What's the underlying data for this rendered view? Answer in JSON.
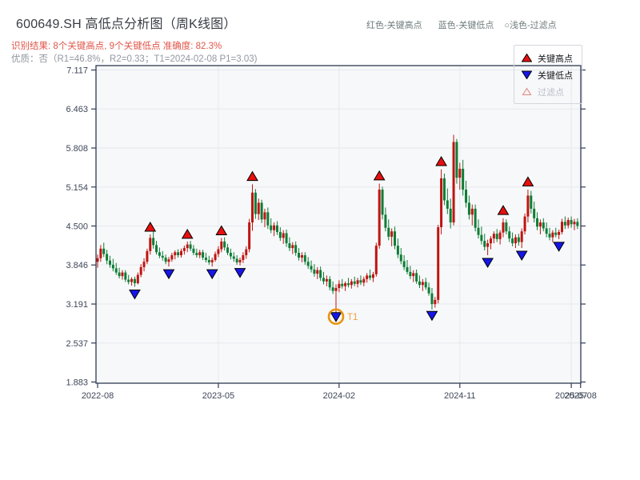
{
  "header": {
    "title": "600649.SH 高低点分析图（周K线图）",
    "subtitle_result": "识别结果: 8个关键高点, 9个关键低点  准确度: 82.3%",
    "subtitle_quality": "优质：否（R1=46.8%，R2=0.33；T1=2024-02-08 P1=3.03)",
    "top_legend": [
      {
        "label": "红色-关键高点"
      },
      {
        "label": "蓝色-关键低点"
      },
      {
        "label": "○浅色-过滤点"
      }
    ]
  },
  "legend_box": {
    "high_label": "关键高点",
    "low_label": "关键低点",
    "filtered_label": "过滤点"
  },
  "colors": {
    "up_candle": "#c01410",
    "down_candle": "#0e7d36",
    "key_high_marker": "#e80f0f",
    "key_low_marker": "#1616e8",
    "marker_edge": "#000000",
    "t1_ring": "#e8940a",
    "t1_text": "#f0a23c",
    "subtitle_red": "#e0564a",
    "axis_text": "#3d4657",
    "spine": "#2e3b52",
    "grid": "#e7e9ec",
    "plot_bg": "#f7f8fa"
  },
  "chart_data": {
    "type": "candlestick",
    "symbol": "600649.SH",
    "frequency": "weekly",
    "title": "600649.SH 高低点分析图（周K线图）",
    "ylim": [
      1.8,
      7.21
    ],
    "grid": true,
    "y_ticks": [
      1.883,
      2.537,
      3.191,
      3.846,
      4.5,
      5.154,
      5.808,
      6.463,
      7.117
    ],
    "x_ticks": [
      {
        "label": "2022-08",
        "week": 0
      },
      {
        "label": "2023-05",
        "week": 39
      },
      {
        "label": "2024-02",
        "week": 78
      },
      {
        "label": "2024-11",
        "week": 117
      },
      {
        "label": "2025-07",
        "week": 153
      },
      {
        "label": "2025-08",
        "week": 156
      }
    ],
    "candles": [
      [
        3.9,
        4.02,
        3.8,
        3.96
      ],
      [
        3.96,
        4.18,
        3.9,
        4.12
      ],
      [
        4.12,
        4.22,
        3.98,
        4.03
      ],
      [
        4.03,
        4.1,
        3.86,
        3.92
      ],
      [
        3.92,
        4.0,
        3.8,
        3.85
      ],
      [
        3.85,
        3.95,
        3.74,
        3.79
      ],
      [
        3.79,
        3.88,
        3.68,
        3.72
      ],
      [
        3.72,
        3.8,
        3.62,
        3.66
      ],
      [
        3.66,
        3.76,
        3.6,
        3.72
      ],
      [
        3.72,
        3.76,
        3.56,
        3.6
      ],
      [
        3.6,
        3.68,
        3.52,
        3.56
      ],
      [
        3.56,
        3.64,
        3.5,
        3.61
      ],
      [
        3.61,
        3.65,
        3.48,
        3.54
      ],
      [
        3.54,
        3.72,
        3.52,
        3.68
      ],
      [
        3.68,
        3.86,
        3.64,
        3.81
      ],
      [
        3.81,
        3.96,
        3.74,
        3.9
      ],
      [
        3.9,
        4.12,
        3.86,
        4.08
      ],
      [
        4.08,
        4.36,
        4.02,
        4.3
      ],
      [
        4.3,
        4.43,
        4.12,
        4.18
      ],
      [
        4.18,
        4.25,
        4.02,
        4.06
      ],
      [
        4.06,
        4.14,
        3.96,
        4.0
      ],
      [
        4.0,
        4.08,
        3.92,
        3.97
      ],
      [
        3.97,
        4.02,
        3.86,
        3.9
      ],
      [
        3.9,
        3.98,
        3.82,
        3.94
      ],
      [
        3.94,
        4.05,
        3.9,
        4.01
      ],
      [
        4.01,
        4.09,
        3.94,
        4.06
      ],
      [
        4.06,
        4.11,
        3.97,
        4.01
      ],
      [
        4.01,
        4.12,
        3.97,
        4.08
      ],
      [
        4.08,
        4.17,
        4.02,
        4.13
      ],
      [
        4.13,
        4.24,
        4.06,
        4.19
      ],
      [
        4.19,
        4.25,
        4.08,
        4.12
      ],
      [
        4.12,
        4.18,
        4.01,
        4.05
      ],
      [
        4.05,
        4.12,
        3.97,
        4.01
      ],
      [
        4.01,
        4.1,
        3.96,
        4.06
      ],
      [
        4.06,
        4.1,
        3.93,
        3.97
      ],
      [
        3.97,
        4.05,
        3.89,
        3.93
      ],
      [
        3.93,
        4.0,
        3.85,
        3.89
      ],
      [
        3.89,
        3.97,
        3.82,
        3.93
      ],
      [
        3.93,
        4.07,
        3.9,
        4.03
      ],
      [
        4.03,
        4.16,
        3.98,
        4.11
      ],
      [
        4.11,
        4.3,
        4.06,
        4.24
      ],
      [
        4.24,
        4.31,
        4.09,
        4.14
      ],
      [
        4.14,
        4.2,
        4.01,
        4.05
      ],
      [
        4.05,
        4.12,
        3.94,
        3.99
      ],
      [
        3.99,
        4.06,
        3.9,
        3.95
      ],
      [
        3.95,
        4.01,
        3.85,
        3.89
      ],
      [
        3.89,
        3.97,
        3.84,
        3.93
      ],
      [
        3.93,
        4.06,
        3.88,
        4.01
      ],
      [
        4.01,
        4.16,
        3.95,
        4.11
      ],
      [
        4.11,
        4.62,
        4.06,
        4.56
      ],
      [
        4.56,
        5.2,
        4.42,
        5.06
      ],
      [
        5.06,
        5.12,
        4.62,
        4.7
      ],
      [
        4.7,
        4.96,
        4.6,
        4.89
      ],
      [
        4.89,
        4.94,
        4.55,
        4.61
      ],
      [
        4.61,
        4.79,
        4.48,
        4.73
      ],
      [
        4.73,
        4.81,
        4.45,
        4.51
      ],
      [
        4.51,
        4.63,
        4.38,
        4.43
      ],
      [
        4.43,
        4.56,
        4.33,
        4.51
      ],
      [
        4.51,
        4.58,
        4.35,
        4.4
      ],
      [
        4.4,
        4.48,
        4.25,
        4.3
      ],
      [
        4.3,
        4.43,
        4.2,
        4.38
      ],
      [
        4.38,
        4.44,
        4.15,
        4.21
      ],
      [
        4.21,
        4.31,
        4.08,
        4.13
      ],
      [
        4.13,
        4.23,
        4.03,
        4.18
      ],
      [
        4.18,
        4.24,
        4.0,
        4.05
      ],
      [
        4.05,
        4.13,
        3.92,
        3.97
      ],
      [
        3.97,
        4.06,
        3.89,
        4.01
      ],
      [
        4.01,
        4.06,
        3.85,
        3.9
      ],
      [
        3.9,
        3.98,
        3.78,
        3.83
      ],
      [
        3.83,
        3.92,
        3.72,
        3.77
      ],
      [
        3.77,
        3.86,
        3.65,
        3.7
      ],
      [
        3.7,
        3.81,
        3.61,
        3.76
      ],
      [
        3.76,
        3.82,
        3.58,
        3.63
      ],
      [
        3.63,
        3.73,
        3.52,
        3.57
      ],
      [
        3.57,
        3.67,
        3.49,
        3.61
      ],
      [
        3.61,
        3.66,
        3.42,
        3.47
      ],
      [
        3.47,
        3.57,
        3.36,
        3.41
      ],
      [
        3.41,
        3.52,
        3.03,
        3.46
      ],
      [
        3.46,
        3.59,
        3.39,
        3.53
      ],
      [
        3.53,
        3.61,
        3.45,
        3.49
      ],
      [
        3.49,
        3.57,
        3.41,
        3.54
      ],
      [
        3.54,
        3.63,
        3.47,
        3.51
      ],
      [
        3.51,
        3.61,
        3.45,
        3.57
      ],
      [
        3.57,
        3.65,
        3.49,
        3.53
      ],
      [
        3.53,
        3.63,
        3.47,
        3.59
      ],
      [
        3.59,
        3.67,
        3.51,
        3.55
      ],
      [
        3.55,
        3.65,
        3.49,
        3.61
      ],
      [
        3.61,
        3.71,
        3.55,
        3.67
      ],
      [
        3.67,
        3.77,
        3.59,
        3.63
      ],
      [
        3.63,
        3.73,
        3.56,
        3.69
      ],
      [
        3.69,
        4.22,
        3.65,
        4.17
      ],
      [
        4.17,
        5.21,
        4.12,
        5.11
      ],
      [
        5.11,
        5.16,
        4.61,
        4.69
      ],
      [
        4.69,
        4.81,
        4.41,
        4.47
      ],
      [
        4.47,
        4.61,
        4.26,
        4.32
      ],
      [
        4.32,
        4.46,
        4.16,
        4.41
      ],
      [
        4.41,
        4.49,
        4.11,
        4.17
      ],
      [
        4.17,
        4.29,
        3.96,
        4.02
      ],
      [
        4.02,
        4.13,
        3.86,
        3.91
      ],
      [
        3.91,
        4.01,
        3.76,
        3.81
      ],
      [
        3.81,
        3.93,
        3.69,
        3.73
      ],
      [
        3.73,
        3.83,
        3.61,
        3.66
      ],
      [
        3.66,
        3.76,
        3.56,
        3.71
      ],
      [
        3.71,
        3.77,
        3.53,
        3.57
      ],
      [
        3.57,
        3.67,
        3.46,
        3.51
      ],
      [
        3.51,
        3.61,
        3.41,
        3.56
      ],
      [
        3.56,
        3.63,
        3.43,
        3.47
      ],
      [
        3.47,
        3.55,
        3.33,
        3.37
      ],
      [
        3.37,
        3.46,
        3.1,
        3.19
      ],
      [
        3.19,
        3.31,
        3.13,
        3.26
      ],
      [
        3.26,
        4.52,
        3.2,
        4.48
      ],
      [
        4.48,
        5.45,
        4.36,
        5.3
      ],
      [
        5.3,
        5.38,
        4.85,
        4.93
      ],
      [
        4.93,
        5.13,
        4.7,
        4.79
      ],
      [
        4.79,
        4.96,
        4.46,
        4.56
      ],
      [
        4.56,
        6.03,
        4.51,
        5.91
      ],
      [
        5.91,
        5.96,
        5.21,
        5.31
      ],
      [
        5.31,
        5.56,
        5.11,
        5.46
      ],
      [
        5.46,
        5.61,
        5.01,
        5.11
      ],
      [
        5.11,
        5.26,
        4.81,
        4.89
      ],
      [
        4.89,
        5.01,
        4.61,
        4.69
      ],
      [
        4.69,
        4.86,
        4.51,
        4.79
      ],
      [
        4.79,
        4.86,
        4.41,
        4.47
      ],
      [
        4.47,
        4.61,
        4.29,
        4.35
      ],
      [
        4.35,
        4.49,
        4.19,
        4.25
      ],
      [
        4.25,
        4.37,
        4.09,
        4.15
      ],
      [
        4.15,
        4.27,
        4.01,
        4.21
      ],
      [
        4.21,
        4.33,
        4.11,
        4.29
      ],
      [
        4.29,
        4.41,
        4.21,
        4.37
      ],
      [
        4.37,
        4.45,
        4.23,
        4.28
      ],
      [
        4.28,
        4.43,
        4.19,
        4.39
      ],
      [
        4.39,
        4.63,
        4.31,
        4.56
      ],
      [
        4.56,
        4.61,
        4.36,
        4.41
      ],
      [
        4.41,
        4.49,
        4.23,
        4.29
      ],
      [
        4.29,
        4.39,
        4.16,
        4.21
      ],
      [
        4.21,
        4.36,
        4.13,
        4.31
      ],
      [
        4.31,
        4.37,
        4.17,
        4.23
      ],
      [
        4.23,
        4.46,
        4.13,
        4.41
      ],
      [
        4.41,
        4.71,
        4.36,
        4.66
      ],
      [
        4.66,
        5.11,
        4.56,
        5.01
      ],
      [
        5.01,
        5.09,
        4.71,
        4.79
      ],
      [
        4.79,
        4.91,
        4.56,
        4.63
      ],
      [
        4.63,
        4.73,
        4.43,
        4.49
      ],
      [
        4.49,
        4.61,
        4.36,
        4.56
      ],
      [
        4.56,
        4.63,
        4.41,
        4.46
      ],
      [
        4.46,
        4.56,
        4.31,
        4.37
      ],
      [
        4.37,
        4.47,
        4.26,
        4.31
      ],
      [
        4.31,
        4.43,
        4.23,
        4.39
      ],
      [
        4.39,
        4.47,
        4.31,
        4.35
      ],
      [
        4.35,
        4.44,
        4.28,
        4.4
      ],
      [
        4.4,
        4.62,
        4.36,
        4.57
      ],
      [
        4.57,
        4.66,
        4.45,
        4.51
      ],
      [
        4.51,
        4.64,
        4.46,
        4.6
      ],
      [
        4.6,
        4.66,
        4.47,
        4.53
      ],
      [
        4.53,
        4.62,
        4.43,
        4.57
      ],
      [
        4.57,
        4.63,
        4.45,
        4.5
      ]
    ],
    "key_highs": [
      {
        "week": 17,
        "price": 4.48
      },
      {
        "week": 29,
        "price": 4.36
      },
      {
        "week": 40,
        "price": 4.42
      },
      {
        "week": 50,
        "price": 5.33
      },
      {
        "week": 91,
        "price": 5.34
      },
      {
        "week": 111,
        "price": 5.58
      },
      {
        "week": 131,
        "price": 4.76
      },
      {
        "week": 139,
        "price": 5.24
      }
    ],
    "key_lows": [
      {
        "week": 12,
        "price": 3.36
      },
      {
        "week": 23,
        "price": 3.7
      },
      {
        "week": 37,
        "price": 3.7
      },
      {
        "week": 46,
        "price": 3.72
      },
      {
        "week": 77,
        "price": 2.98
      },
      {
        "week": 108,
        "price": 3.0
      },
      {
        "week": 126,
        "price": 3.89
      },
      {
        "week": 137,
        "price": 4.01
      },
      {
        "week": 149,
        "price": 4.16
      }
    ],
    "t1_annotation": {
      "week": 77,
      "price": 2.98,
      "label": "T1",
      "date": "2024-02-08",
      "value": "3.03"
    }
  }
}
